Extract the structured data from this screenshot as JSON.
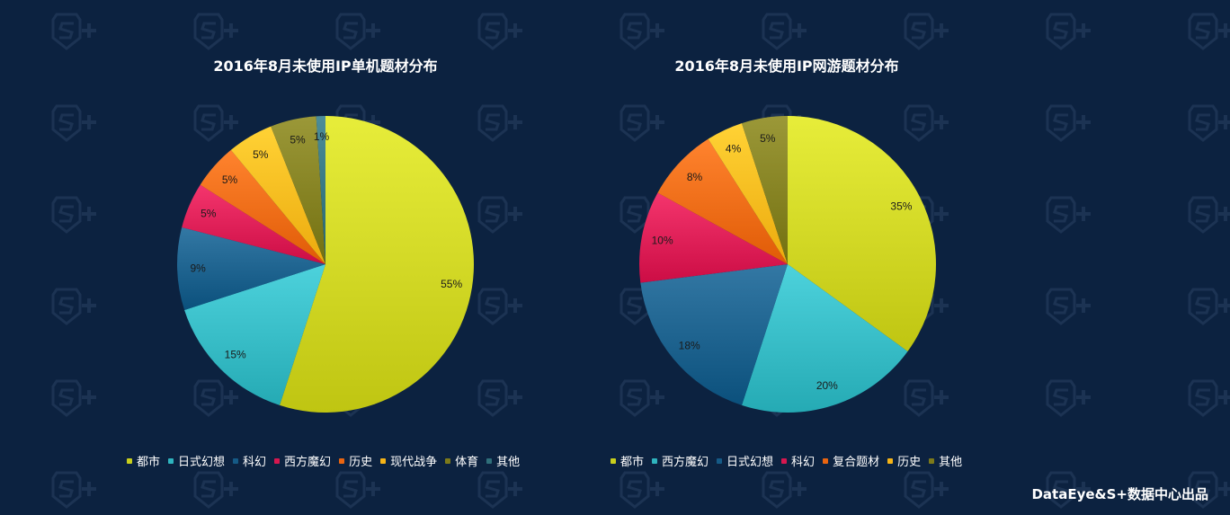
{
  "chart_data": [
    {
      "type": "pie",
      "title": "2016年8月未使用IP单机题材分布",
      "series": [
        {
          "label": "都市",
          "value": 55,
          "display": "55%",
          "color": "#c9cf1c"
        },
        {
          "label": "日式幻想",
          "value": 15,
          "display": "15%",
          "color": "#2fb4be"
        },
        {
          "label": "科幻",
          "value": 9,
          "display": "9%",
          "color": "#155a86"
        },
        {
          "label": "西方魔幻",
          "value": 5,
          "display": "5%",
          "color": "#d6174f"
        },
        {
          "label": "历史",
          "value": 5,
          "display": "5%",
          "color": "#ea6510"
        },
        {
          "label": "现代战争",
          "value": 5,
          "display": "5%",
          "color": "#f6b417"
        },
        {
          "label": "体育",
          "value": 5,
          "display": "5%",
          "color": "#7d7a1a"
        },
        {
          "label": "其他",
          "value": 1,
          "display": "1%",
          "color": "#2f6f7a"
        }
      ],
      "legend_position": "bottom"
    },
    {
      "type": "pie",
      "title": "2016年8月未使用IP网游题材分布",
      "series": [
        {
          "label": "都市",
          "value": 35,
          "display": "35%",
          "color": "#c9cf1c"
        },
        {
          "label": "西方魔幻",
          "value": 20,
          "display": "20%",
          "color": "#2fb4be"
        },
        {
          "label": "日式幻想",
          "value": 18,
          "display": "18%",
          "color": "#155a86"
        },
        {
          "label": "科幻",
          "value": 10,
          "display": "10%",
          "color": "#d6174f"
        },
        {
          "label": "复合题材",
          "value": 8,
          "display": "8%",
          "color": "#ea6510"
        },
        {
          "label": "历史",
          "value": 4,
          "display": "4%",
          "color": "#f6b417"
        },
        {
          "label": "其他",
          "value": 5,
          "display": "5%",
          "color": "#7d7a1a"
        }
      ],
      "legend_position": "bottom"
    }
  ],
  "credit": "DataEye&S+数据中心出品",
  "colors": {
    "background": "#0c2240",
    "watermark": "#1c3353"
  }
}
